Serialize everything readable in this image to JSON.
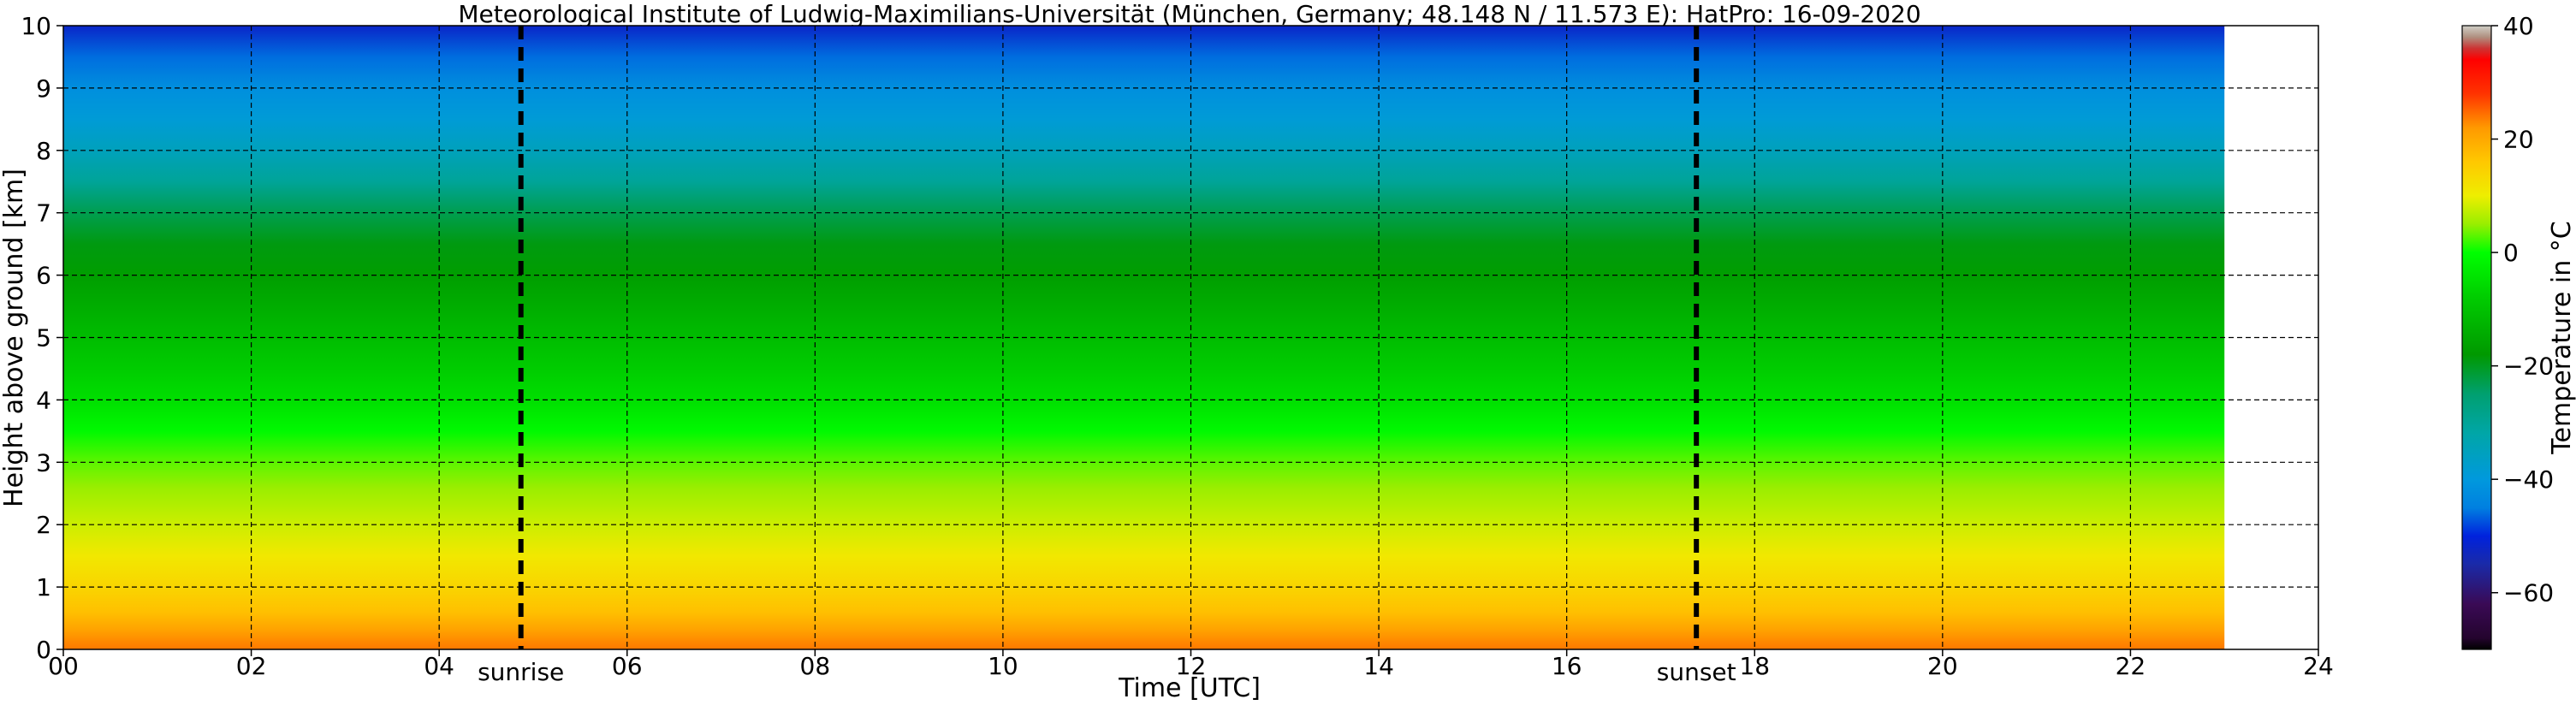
{
  "chart_data": {
    "type": "heatmap",
    "title": "Meteorological Institute of Ludwig-Maximilians-Universität (München, Germany; 48.148 N / 11.573 E):    HatPro: 16-09-2020",
    "xlabel": "Time [UTC]",
    "ylabel": "Height above ground [km]",
    "colorbar_label": "Temperature in $^\\circ$C",
    "xlim": [
      0,
      24
    ],
    "ylim": [
      0,
      10
    ],
    "x_ticks": [
      "00",
      "02",
      "04",
      "06",
      "08",
      "10",
      "12",
      "14",
      "16",
      "18",
      "20",
      "22",
      "24"
    ],
    "y_ticks": [
      "0",
      "1",
      "2",
      "3",
      "4",
      "5",
      "6",
      "7",
      "8",
      "9",
      "10"
    ],
    "data_time_range_hours": [
      0,
      23
    ],
    "grid": true,
    "grid_style": "dashed",
    "colorbar": {
      "range": [
        -70,
        40
      ],
      "ticks": [
        "40",
        "20",
        "0",
        "−20",
        "−40",
        "−60"
      ],
      "tick_values": [
        40,
        20,
        0,
        -20,
        -40,
        -60
      ],
      "colors": [
        {
          "value": -70,
          "color": "#000000"
        },
        {
          "value": -68,
          "color": "#24042e"
        },
        {
          "value": -62,
          "color": "#3a0a55"
        },
        {
          "value": -55,
          "color": "#1a2aa8"
        },
        {
          "value": -50,
          "color": "#0022dd"
        },
        {
          "value": -45,
          "color": "#0080e0"
        },
        {
          "value": -40,
          "color": "#0099dd"
        },
        {
          "value": -32,
          "color": "#00a6a8"
        },
        {
          "value": -25,
          "color": "#00a070"
        },
        {
          "value": -18,
          "color": "#009900"
        },
        {
          "value": -8,
          "color": "#00cc00"
        },
        {
          "value": 0,
          "color": "#00ff00"
        },
        {
          "value": 5,
          "color": "#99ee00"
        },
        {
          "value": 10,
          "color": "#eeee00"
        },
        {
          "value": 16,
          "color": "#ffc800"
        },
        {
          "value": 22,
          "color": "#ff9900"
        },
        {
          "value": 28,
          "color": "#ff3300"
        },
        {
          "value": 34,
          "color": "#ff0000"
        },
        {
          "value": 36,
          "color": "#cc3333"
        },
        {
          "value": 38,
          "color": "#b09080"
        },
        {
          "value": 40,
          "color": "#d0d0c8"
        }
      ]
    },
    "temperature_profile": {
      "height_km": [
        0,
        0.3,
        0.6,
        1.0,
        1.5,
        2.0,
        2.6,
        3.0,
        3.5,
        4.0,
        4.5,
        5.0,
        5.5,
        6.0,
        6.5,
        7.0,
        7.5,
        8.0,
        8.5,
        9.0,
        9.5,
        10.0
      ],
      "temperature_c": [
        24,
        21,
        17,
        14,
        11,
        8,
        5,
        3,
        -1,
        -5,
        -8,
        -11,
        -14,
        -17,
        -19,
        -23,
        -30,
        -35,
        -39,
        -42,
        -46,
        -52
      ]
    },
    "annotations": [
      {
        "label": "sunrise",
        "time_hours": 4.87,
        "style": "dashed-vertical-line"
      },
      {
        "label": "sunset",
        "time_hours": 17.38,
        "style": "dashed-vertical-line"
      }
    ]
  }
}
